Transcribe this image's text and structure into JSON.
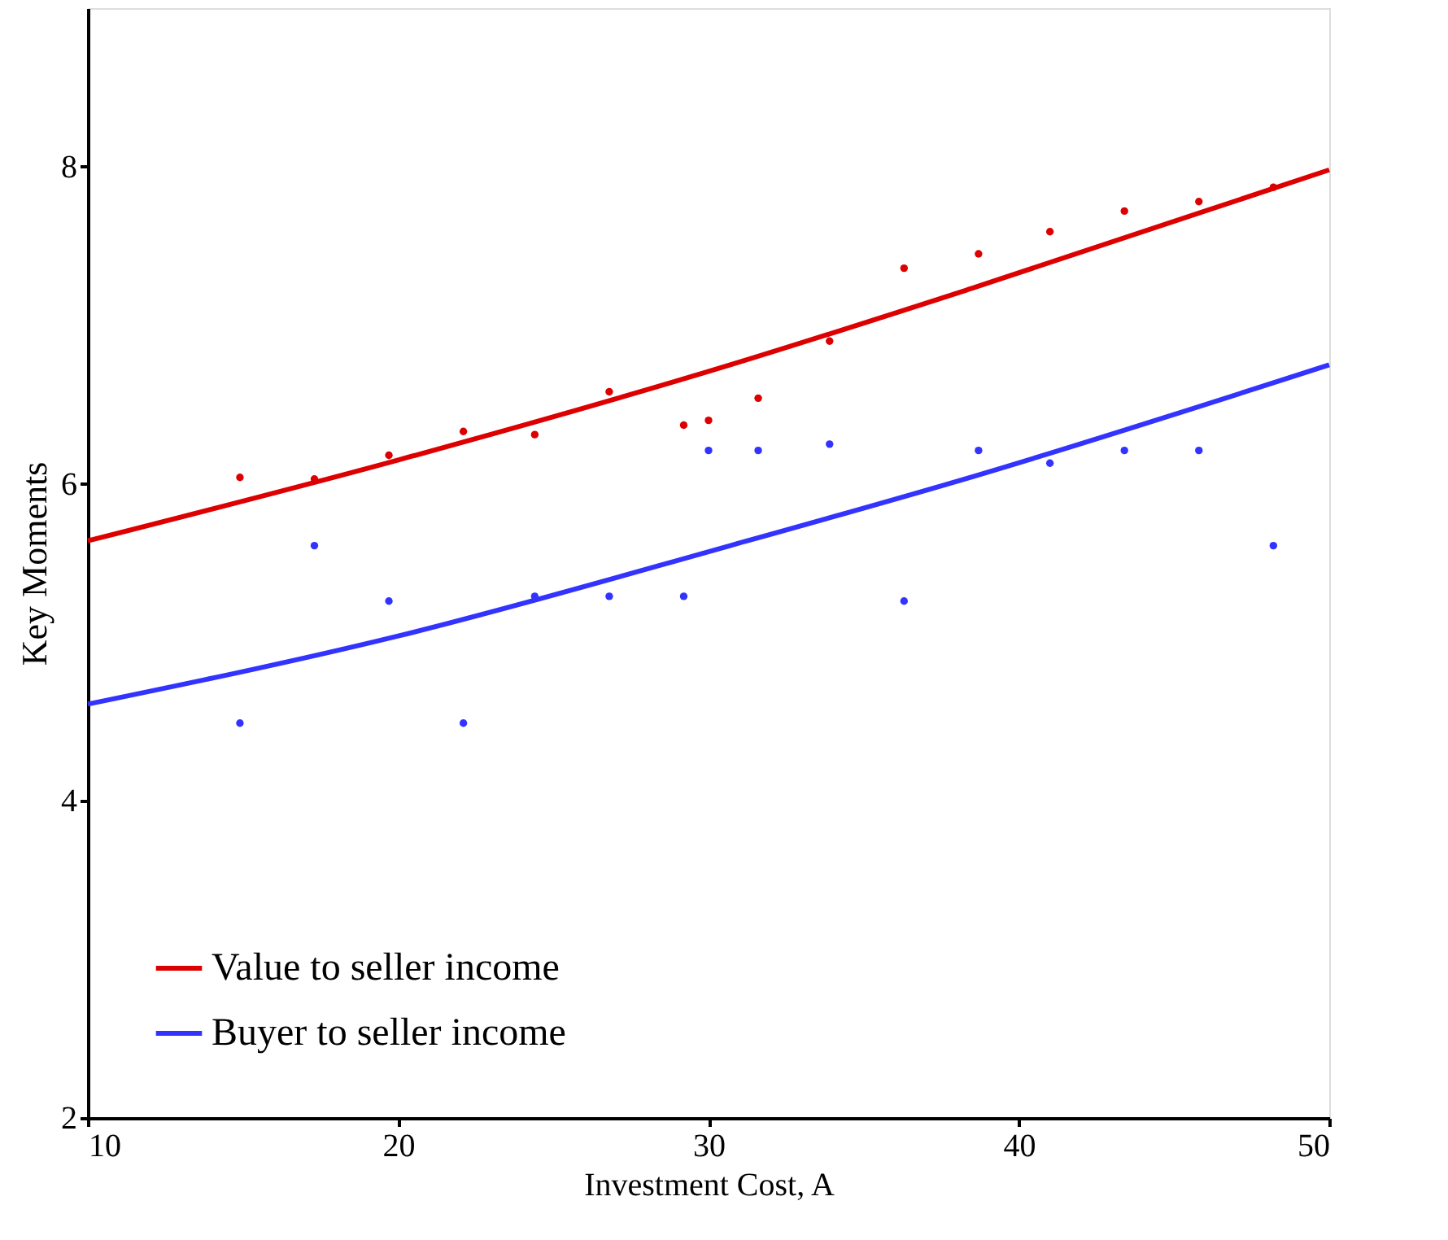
{
  "chart_data": {
    "type": "scatter",
    "xlabel": "Investment Cost, A",
    "ylabel": "Key Moments",
    "xlim": [
      10,
      50
    ],
    "ylim": [
      2,
      9
    ],
    "xticks": [
      10,
      20,
      30,
      40,
      50
    ],
    "yticks": [
      2,
      4,
      6,
      8
    ],
    "grid": false,
    "legend": "bottom left",
    "series": [
      {
        "name": "Value to seller income",
        "type": "line",
        "marker": "none",
        "color": "#dd0000",
        "x": [
          10,
          20,
          30.7,
          38.6,
          50
        ],
        "values": [
          5.64,
          6.15,
          6.75,
          7.24,
          7.98
        ]
      },
      {
        "name": "Buyer to seller income",
        "type": "line",
        "marker": "none",
        "color": "#3333ff",
        "x": [
          10,
          20,
          30.7,
          38.6,
          50
        ],
        "values": [
          4.61,
          5.04,
          5.61,
          6.05,
          6.75
        ]
      },
      {
        "type": "scatter",
        "marker": "circle",
        "color": "#dd0000",
        "x": [
          14.9,
          17.3,
          19.7,
          22.1,
          24.4,
          26.8,
          29.2,
          30.0,
          31.6,
          33.9,
          36.3,
          38.7,
          41.0,
          43.4,
          45.8,
          48.2
        ],
        "values": [
          6.04,
          6.03,
          6.18,
          6.33,
          6.31,
          6.58,
          6.37,
          6.4,
          6.54,
          6.9,
          7.36,
          7.45,
          7.59,
          7.72,
          7.78,
          7.87
        ]
      },
      {
        "type": "scatter",
        "marker": "circle",
        "color": "#3333ff",
        "x": [
          14.9,
          17.3,
          19.7,
          22.1,
          24.4,
          26.8,
          29.2,
          30.0,
          31.6,
          33.9,
          36.3,
          38.7,
          41.0,
          43.4,
          45.8,
          48.2
        ],
        "values": [
          4.49,
          5.61,
          5.26,
          4.49,
          5.29,
          5.29,
          5.29,
          6.21,
          6.21,
          6.25,
          5.26,
          6.21,
          6.13,
          6.21,
          6.21,
          5.61
        ]
      }
    ]
  }
}
